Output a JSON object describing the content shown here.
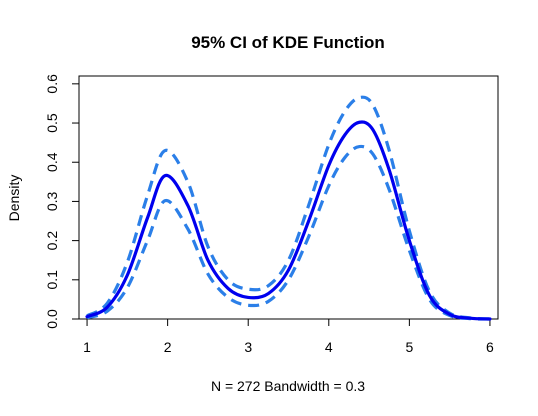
{
  "chart_data": {
    "type": "line",
    "title": "95% CI of KDE Function",
    "xlabel": "N = 272   Bandwidth = 0.3",
    "ylabel": "Density",
    "xlim": [
      0.9,
      6.1
    ],
    "ylim": [
      0.0,
      0.62
    ],
    "xticks": [
      1,
      2,
      3,
      4,
      5,
      6
    ],
    "yticks": [
      0.0,
      0.1,
      0.2,
      0.3,
      0.4,
      0.5,
      0.6
    ],
    "x": [
      1.0,
      1.25,
      1.5,
      1.75,
      1.97,
      2.25,
      2.5,
      2.75,
      3.0,
      3.25,
      3.5,
      3.75,
      4.0,
      4.2,
      4.38,
      4.55,
      4.75,
      5.0,
      5.25,
      5.5,
      5.75,
      6.0
    ],
    "series": [
      {
        "name": "",
        "color": "#0000EE",
        "style": "solid",
        "values": [
          0.006,
          0.03,
          0.112,
          0.258,
          0.366,
          0.29,
          0.15,
          0.078,
          0.055,
          0.065,
          0.125,
          0.25,
          0.392,
          0.47,
          0.502,
          0.482,
          0.38,
          0.2,
          0.06,
          0.012,
          0.002,
          0.0
        ]
      },
      {
        "name": "",
        "color": "#2B7FE8",
        "style": "dashed",
        "values": [
          0.008,
          0.04,
          0.145,
          0.315,
          0.43,
          0.35,
          0.185,
          0.1,
          0.076,
          0.085,
          0.15,
          0.29,
          0.445,
          0.53,
          0.565,
          0.545,
          0.43,
          0.225,
          0.07,
          0.015,
          0.003,
          0.0
        ]
      },
      {
        "name": "",
        "color": "#2B7FE8",
        "style": "dashed",
        "values": [
          0.003,
          0.02,
          0.08,
          0.2,
          0.302,
          0.23,
          0.115,
          0.055,
          0.035,
          0.045,
          0.1,
          0.21,
          0.34,
          0.412,
          0.44,
          0.42,
          0.33,
          0.175,
          0.05,
          0.009,
          0.001,
          0.0
        ]
      }
    ],
    "grid": false,
    "legend": "none"
  }
}
